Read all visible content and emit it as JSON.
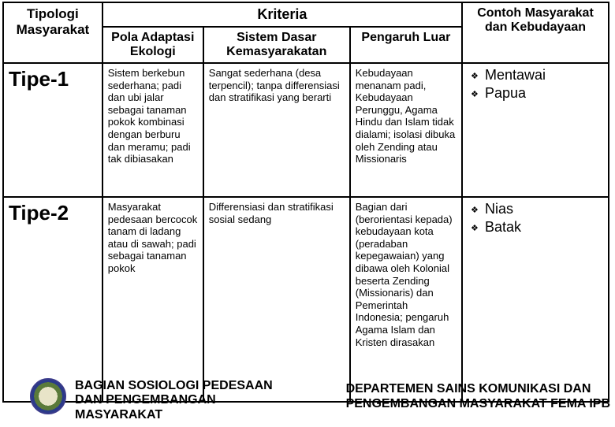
{
  "table": {
    "headers": {
      "tipologi": "Tipologi Masyarakat",
      "kriteria": "Kriteria",
      "pola": "Pola Adaptasi Ekologi",
      "sistem": "Sistem Dasar Kemasyarakatan",
      "pengaruh": "Pengaruh Luar",
      "contoh": "Contoh Masyarakat dan Kebudayaan"
    },
    "rows": [
      {
        "tipe": "Tipe-1",
        "pola": "Sistem berkebun sederhana; padi dan ubi jalar sebagai tanaman pokok kombinasi dengan berburu dan meramu; padi tak dibiasakan",
        "sistem": "Sangat sederhana (desa terpencil); tanpa differensiasi dan stratifikasi yang berarti",
        "pengaruh": "Kebudayaan menanam padi, Kebudayaan Perunggu, Agama Hindu dan Islam tidak dialami; isolasi dibuka oleh Zending atau Missionaris",
        "contoh": [
          "Mentawai",
          "Papua"
        ]
      },
      {
        "tipe": "Tipe-2",
        "pola": "Masyarakat pedesaan bercocok tanam di ladang atau di sawah; padi sebagai tanaman pokok",
        "sistem": "Differensiasi dan stratifikasi sosial sedang",
        "pengaruh": "Bagian dari (berorientasi kepada) kebudayaan kota (peradaban kepegawaian) yang dibawa oleh Kolonial beserta Zending (Missionaris) dan Pemerintah Indonesia; pengaruh Agama Islam dan Kristen dirasakan",
        "contoh": [
          "Nias",
          "Batak"
        ]
      }
    ]
  },
  "footer": {
    "left_line1": "BAGIAN SOSIOLOGI PEDESAAN",
    "left_line2": "DAN PENGEMBANGAN",
    "left_line3": "MASYARAKAT",
    "right_line1": "DEPARTEMEN SAINS KOMUNIKASI DAN",
    "right_line2": "PENGEMBANGAN MASYARAKAT FEMA IPB"
  }
}
